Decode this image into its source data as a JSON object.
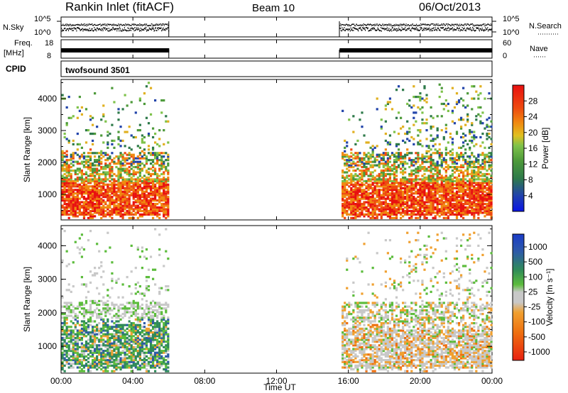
{
  "header": {
    "title": "Rankin Inlet (fitACF)",
    "beam": "Beam 10",
    "date": "06/Oct/2013"
  },
  "strip_labels": {
    "nsky": "N.Sky",
    "nsky_top": "10^5",
    "nsky_bot": "10^0",
    "nsearch": "N.Search",
    "nsearch_top": "10^5",
    "nsearch_bot": "10^0",
    "freq_line1": "Freq.",
    "freq_line2": "[MHz]",
    "freq_top": "18",
    "freq_bot": "8",
    "nave": "Nave",
    "nave_top": "60",
    "nave_bot": "0",
    "cpid": "CPID",
    "cpid_value": "twofsound 3501"
  },
  "chart_data": [
    {
      "type": "heatmap",
      "name": "power-panel",
      "ylabel": "Slant Range [km]",
      "y_ticks": [
        "1000",
        "2000",
        "3000",
        "4000"
      ],
      "y_tick_values": [
        1000,
        2000,
        3000,
        4000
      ],
      "ylim": [
        200,
        4600
      ],
      "xlim": [
        0,
        24
      ],
      "colorbar_label": "Power [dB]",
      "colorbar_ticks": [
        "4",
        "8",
        "12",
        "16",
        "20",
        "24",
        "28"
      ],
      "data_gap_hours": [
        6.0,
        15.5
      ]
    },
    {
      "type": "heatmap",
      "name": "velocity-panel",
      "ylabel": "Slant Range [km]",
      "y_ticks": [
        "1000",
        "2000",
        "3000",
        "4000"
      ],
      "y_tick_values": [
        1000,
        2000,
        3000,
        4000
      ],
      "ylim": [
        200,
        4600
      ],
      "xlim": [
        0,
        24
      ],
      "colorbar_label": "Velocity [m s⁻¹]",
      "colorbar_ticks": [
        "1000",
        "500",
        "100",
        "25",
        "-25",
        "-100",
        "-500",
        "-1000"
      ],
      "data_gap_hours": [
        6.0,
        15.5
      ]
    }
  ],
  "x_axis": {
    "label": "Time UT",
    "ticks": [
      "00:00",
      "04:00",
      "08:00",
      "12:00",
      "16:00",
      "20:00",
      "00:00"
    ]
  },
  "colors": {
    "power_scale": [
      "#0a14e6",
      "#2244aa",
      "#2e7a4a",
      "#4d9a3a",
      "#7ec24a",
      "#e0b020",
      "#f08a10",
      "#ee4a10",
      "#e81010"
    ],
    "velocity_scale": [
      "#1a3cc8",
      "#2e5aa8",
      "#2f8a5a",
      "#5cbc3c",
      "#c8c8c8",
      "#f0a030",
      "#ee7010",
      "#e82010"
    ]
  }
}
